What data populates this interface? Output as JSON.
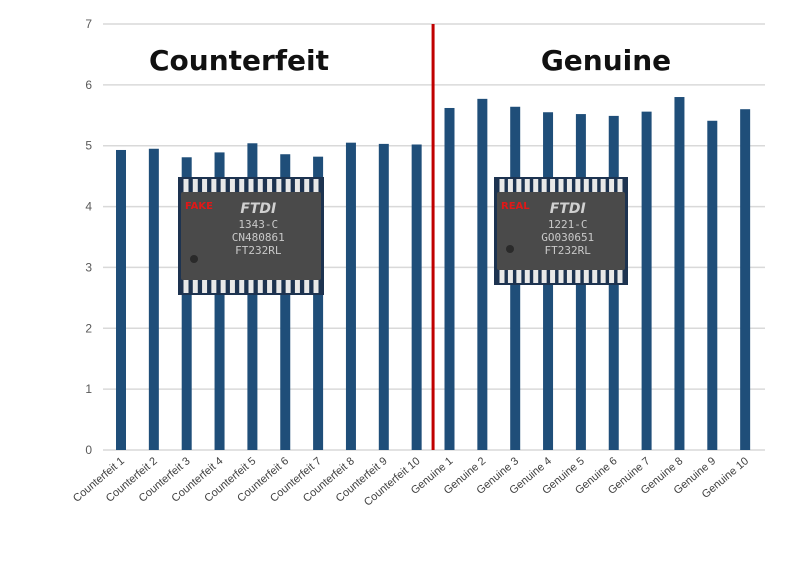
{
  "chart_data": {
    "type": "bar",
    "title": "",
    "xlabel": "",
    "ylabel": "",
    "ylim": [
      0,
      7
    ],
    "yticks": [
      "0",
      "1",
      "2",
      "3",
      "4",
      "5",
      "6",
      "7"
    ],
    "grid": true,
    "color": "#1f4e79",
    "divider_color": "#c00000",
    "group_titles": [
      "Counterfeit",
      "Genuine"
    ],
    "categories": [
      "Counterfeit 1",
      "Counterfeit 2",
      "Counterfeit 3",
      "Counterfeit 4",
      "Counterfeit 5",
      "Counterfeit 6",
      "Counterfeit 7",
      "Counterfeit 8",
      "Counterfeit 9",
      "Counterfeit 10",
      "Genuine 1",
      "Genuine 2",
      "Genuine 3",
      "Genuine 4",
      "Genuine 5",
      "Genuine 6",
      "Genuine 7",
      "Genuine 8",
      "Genuine 9",
      "Genuine 10"
    ],
    "values": [
      4.93,
      4.95,
      4.81,
      4.89,
      5.04,
      4.86,
      4.82,
      5.05,
      5.03,
      5.02,
      5.62,
      5.77,
      5.64,
      5.55,
      5.52,
      5.49,
      5.56,
      5.8,
      5.41,
      5.6
    ]
  },
  "chips": [
    {
      "tag": "FAKE",
      "logo": "FTDI",
      "lines": [
        "1343-C",
        "CN480861",
        "FT232RL"
      ]
    },
    {
      "tag": "REAL",
      "logo": "FTDI",
      "lines": [
        "1221-C",
        "GO030651",
        "FT232RL"
      ]
    }
  ]
}
